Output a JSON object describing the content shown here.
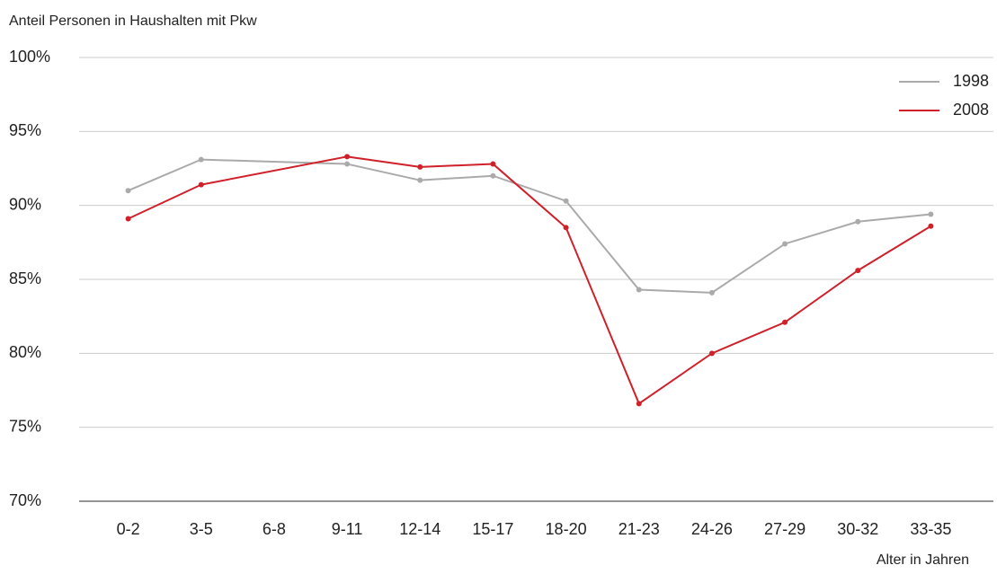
{
  "chart_data": {
    "type": "line",
    "y_label": "Anteil Personen in Haushalten mit Pkw",
    "x_label": "Alter in Jahren",
    "categories": [
      "0-2",
      "3-5",
      "6-8",
      "9-11",
      "12-14",
      "15-17",
      "18-20",
      "21-23",
      "24-26",
      "27-29",
      "30-32",
      "33-35"
    ],
    "series": [
      {
        "name": "1998",
        "color": "#aaaaaa",
        "values": [
          91.0,
          93.1,
          null,
          92.8,
          91.7,
          92.0,
          90.3,
          84.3,
          84.1,
          87.4,
          88.9,
          89.4
        ]
      },
      {
        "name": "2008",
        "color": "#d0202a",
        "values": [
          89.1,
          91.4,
          null,
          93.3,
          92.6,
          92.8,
          88.5,
          76.6,
          80.0,
          82.1,
          85.6,
          88.6
        ]
      }
    ],
    "ylim": [
      70,
      100
    ],
    "yticks": [
      {
        "value": 70,
        "label": "70%"
      },
      {
        "value": 75,
        "label": "75%"
      },
      {
        "value": 80,
        "label": "80%"
      },
      {
        "value": 85,
        "label": "85%"
      },
      {
        "value": 90,
        "label": "90%"
      },
      {
        "value": 95,
        "label": "95%"
      },
      {
        "value": 100,
        "label": "100%"
      }
    ],
    "grid": true,
    "legend": "top-right"
  }
}
